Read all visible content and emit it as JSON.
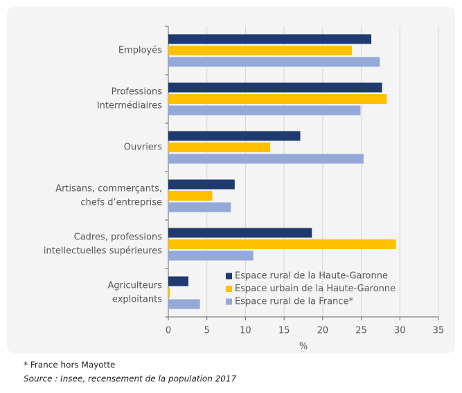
{
  "chart_data": {
    "type": "bar",
    "orientation": "horizontal",
    "categories": [
      [
        "Employés"
      ],
      [
        "Professions",
        "Intermédiaires"
      ],
      [
        "Ouvriers"
      ],
      [
        "Artisans, commerçants,",
        "chefs d’entreprise"
      ],
      [
        "Cadres, professions",
        "intellectuelles supérieures"
      ],
      [
        "Agriculteurs",
        "exploitants"
      ]
    ],
    "series": [
      {
        "name": "Espace rural de la Haute-Garonne",
        "color": "#1f3a6e",
        "values": [
          26.3,
          27.7,
          17.1,
          8.6,
          18.6,
          2.6
        ]
      },
      {
        "name": "Espace urbain de la Haute-Garonne",
        "color": "#ffc000",
        "values": [
          23.8,
          28.3,
          13.2,
          5.7,
          29.5,
          0.2
        ]
      },
      {
        "name": "Espace rural de la France*",
        "color": "#95a9d9",
        "values": [
          27.4,
          24.9,
          25.3,
          8.1,
          11.0,
          4.1
        ]
      }
    ],
    "xlabel": "%",
    "xlim": [
      0,
      35
    ],
    "xticks": [
      0,
      5,
      10,
      15,
      20,
      25,
      30,
      35
    ],
    "grid": true,
    "note": "* France hors Mayotte",
    "source": "Source : Insee, recensement de la population 2017"
  }
}
